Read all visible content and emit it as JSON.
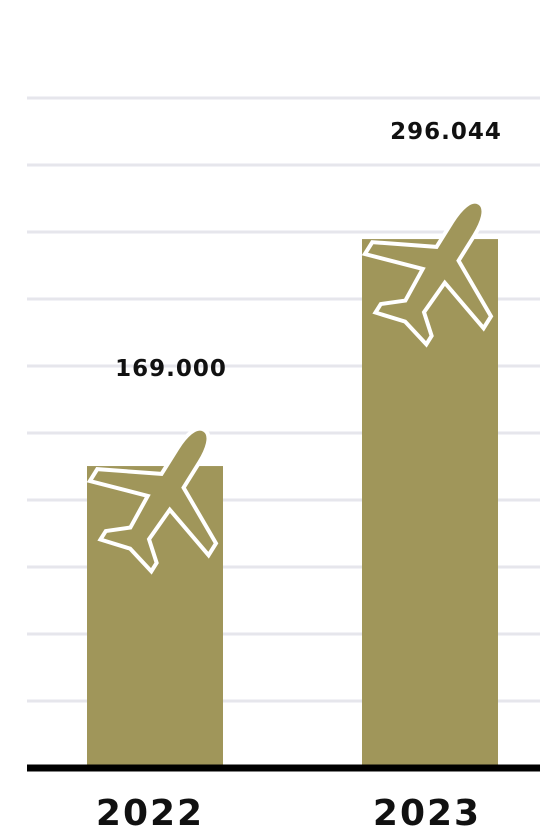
{
  "chart_data": {
    "type": "bar",
    "categories": [
      "2022",
      "2023"
    ],
    "values": [
      169000,
      296044
    ],
    "value_labels": [
      "169.000",
      "296.044"
    ],
    "ylim": [
      0,
      375000
    ],
    "grid": true,
    "colors": {
      "bar": "#a0965a",
      "grid": "#e6e6ec",
      "axis": "#000000",
      "text": "#111111"
    },
    "bar_icon": "airplane-icon"
  }
}
